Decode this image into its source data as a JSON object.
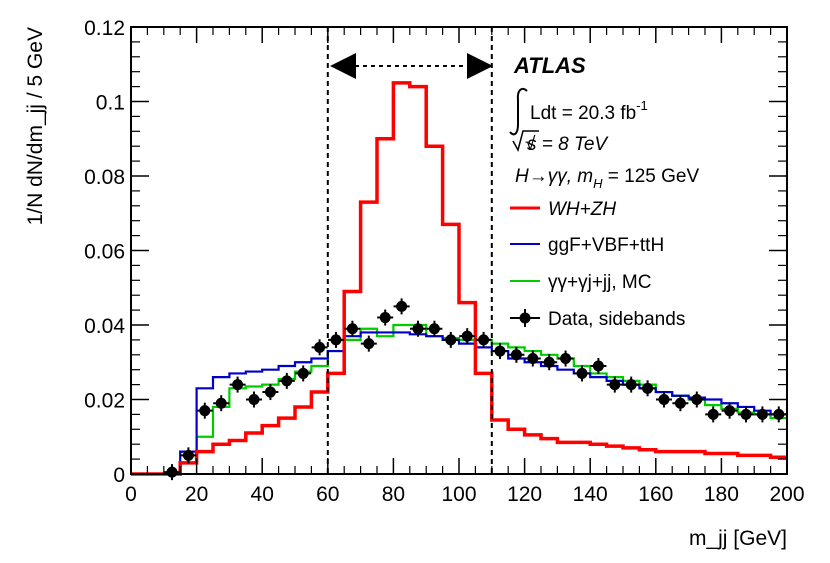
{
  "chart_data": {
    "type": "line",
    "title": "",
    "xlabel": "m_jj [GeV]",
    "ylabel": "1/N dN/dm_jj / 5 GeV",
    "xlim": [
      0,
      200
    ],
    "ylim": [
      0,
      0.12
    ],
    "xticks": [
      0,
      20,
      40,
      60,
      80,
      100,
      120,
      140,
      160,
      180,
      200
    ],
    "xtick_labels": [
      "0",
      "20",
      "40",
      "60",
      "80",
      "100",
      "120",
      "140",
      "160",
      "180",
      "200"
    ],
    "yticks": [
      0,
      0.02,
      0.04,
      0.06,
      0.08,
      0.1,
      0.12
    ],
    "ytick_labels": [
      "0",
      "0.02",
      "0.04",
      "0.06",
      "0.08",
      "0.1",
      "0.12"
    ],
    "bin_edges": [
      0,
      5,
      10,
      15,
      20,
      25,
      30,
      35,
      40,
      45,
      50,
      55,
      60,
      65,
      70,
      75,
      80,
      85,
      90,
      95,
      100,
      105,
      110,
      115,
      120,
      125,
      130,
      135,
      140,
      145,
      150,
      155,
      160,
      165,
      170,
      175,
      180,
      185,
      190,
      195,
      200
    ],
    "series": [
      {
        "name": "WH+ZH",
        "color": "#ff0000",
        "kind": "step",
        "values": [
          0,
          0,
          0,
          0.003,
          0.006,
          0.008,
          0.009,
          0.011,
          0.013,
          0.015,
          0.018,
          0.022,
          0.027,
          0.049,
          0.073,
          0.09,
          0.105,
          0.104,
          0.088,
          0.067,
          0.046,
          0.027,
          0.0145,
          0.012,
          0.0105,
          0.0095,
          0.0085,
          0.0085,
          0.008,
          0.0075,
          0.007,
          0.0065,
          0.006,
          0.006,
          0.006,
          0.0055,
          0.0055,
          0.005,
          0.005,
          0.0045
        ]
      },
      {
        "name": "ggF+VBF+ttH",
        "color": "#0000cc",
        "kind": "step",
        "values": [
          0,
          0,
          0,
          0.006,
          0.023,
          0.026,
          0.027,
          0.0275,
          0.028,
          0.029,
          0.03,
          0.031,
          0.033,
          0.037,
          0.038,
          0.038,
          0.038,
          0.0375,
          0.037,
          0.036,
          0.035,
          0.034,
          0.033,
          0.031,
          0.03,
          0.029,
          0.028,
          0.027,
          0.026,
          0.025,
          0.024,
          0.023,
          0.022,
          0.021,
          0.0205,
          0.02,
          0.019,
          0.018,
          0.017,
          0.016
        ]
      },
      {
        "name": "γγ+γj+jj, MC",
        "color": "#00cc00",
        "kind": "step",
        "values": [
          0,
          0,
          0,
          0.003,
          0.01,
          0.018,
          0.023,
          0.0235,
          0.024,
          0.0255,
          0.0275,
          0.029,
          0.033,
          0.036,
          0.039,
          0.037,
          0.04,
          0.04,
          0.037,
          0.0365,
          0.036,
          0.036,
          0.035,
          0.034,
          0.033,
          0.032,
          0.031,
          0.029,
          0.027,
          0.026,
          0.025,
          0.024,
          0.022,
          0.021,
          0.02,
          0.0185,
          0.0175,
          0.0165,
          0.016,
          0.015
        ]
      },
      {
        "name": "Data, sidebands",
        "color": "#000000",
        "kind": "points",
        "x": [
          12.5,
          17.5,
          22.5,
          27.5,
          32.5,
          37.5,
          42.5,
          47.5,
          52.5,
          57.5,
          62.5,
          67.5,
          72.5,
          77.5,
          82.5,
          87.5,
          92.5,
          97.5,
          102.5,
          107.5,
          112.5,
          117.5,
          122.5,
          127.5,
          132.5,
          137.5,
          142.5,
          147.5,
          152.5,
          157.5,
          162.5,
          167.5,
          172.5,
          177.5,
          182.5,
          187.5,
          192.5,
          197.5
        ],
        "values": [
          0.0005,
          0.005,
          0.017,
          0.019,
          0.024,
          0.02,
          0.022,
          0.025,
          0.027,
          0.034,
          0.036,
          0.039,
          0.035,
          0.042,
          0.045,
          0.039,
          0.039,
          0.036,
          0.037,
          0.036,
          0.033,
          0.032,
          0.031,
          0.03,
          0.031,
          0.027,
          0.029,
          0.024,
          0.024,
          0.023,
          0.02,
          0.019,
          0.02,
          0.016,
          0.017,
          0.016,
          0.016,
          0.016
        ]
      }
    ],
    "vlines": [
      60,
      110
    ],
    "annotations": {
      "experiment": "ATLAS",
      "lumi_text": "Ldt = 20.3 fb",
      "lumi_sup": "-1",
      "energy_text": "s = 8 TeV",
      "process_text": "H→γγ, m",
      "process_sub": "H",
      "process_tail": " = 125 GeV"
    },
    "legend": {
      "placement": "right",
      "entries": [
        "WH+ZH",
        "ggF+VBF+ttH",
        "γγ+γj+jj, MC",
        "Data, sidebands"
      ]
    }
  }
}
